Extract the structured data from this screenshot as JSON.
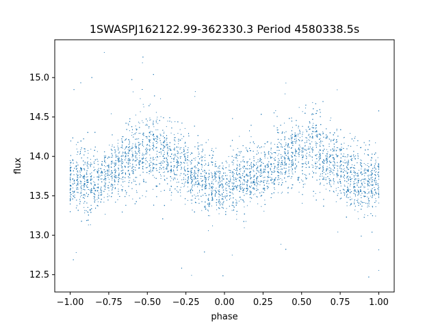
{
  "chart_data": {
    "type": "scatter",
    "title": "1SWASPJ162122.99-362330.3 Period 4580338.5s",
    "xlabel": "phase",
    "ylabel": "flux",
    "xlim": [
      -1.1,
      1.1
    ],
    "ylim": [
      12.28,
      15.48
    ],
    "grid": false,
    "legend": "none",
    "marker_color": "#1f77b4",
    "xticks": [
      -1.0,
      -0.75,
      -0.5,
      -0.25,
      0.0,
      0.25,
      0.5,
      0.75,
      1.0
    ],
    "xtick_labels": [
      "−1.00",
      "−0.75",
      "−0.50",
      "−0.25",
      "0.00",
      "0.25",
      "0.50",
      "0.75",
      "1.00"
    ],
    "yticks": [
      12.5,
      13.0,
      13.5,
      14.0,
      14.5,
      15.0
    ],
    "ytick_labels": [
      "12.5",
      "13.0",
      "13.5",
      "14.0",
      "14.5",
      "15.0"
    ],
    "series": [
      {
        "x": [
          -1.0,
          -0.95,
          -0.9,
          -0.85,
          -0.8,
          -0.75,
          -0.7,
          -0.65,
          -0.6,
          -0.55,
          -0.5,
          -0.45,
          -0.4,
          -0.35,
          -0.3,
          -0.25,
          -0.2,
          -0.15,
          -0.1,
          -0.05,
          0.0,
          0.05,
          0.1,
          0.15,
          0.2,
          0.25,
          0.3,
          0.35,
          0.4,
          0.45,
          0.5,
          0.55,
          0.6,
          0.65,
          0.7,
          0.75,
          0.8,
          0.85,
          0.9,
          0.95,
          1.0
        ],
        "y": [
          13.7,
          13.72,
          13.68,
          13.65,
          13.72,
          13.8,
          13.88,
          13.9,
          13.95,
          14.05,
          14.05,
          14.1,
          14.05,
          13.95,
          13.9,
          13.85,
          13.8,
          13.72,
          13.68,
          13.65,
          13.6,
          13.68,
          13.7,
          13.72,
          13.75,
          13.82,
          13.88,
          13.92,
          13.95,
          14.05,
          14.05,
          14.1,
          14.05,
          13.95,
          13.9,
          13.85,
          13.75,
          13.72,
          13.7,
          13.68,
          13.7
        ],
        "spread": [
          0.32,
          0.35,
          0.4,
          0.35,
          0.3,
          0.3,
          0.32,
          0.35,
          0.4,
          0.45,
          0.42,
          0.45,
          0.4,
          0.35,
          0.32,
          0.35,
          0.4,
          0.38,
          0.35,
          0.35,
          0.32,
          0.35,
          0.38,
          0.38,
          0.32,
          0.3,
          0.32,
          0.35,
          0.38,
          0.42,
          0.45,
          0.45,
          0.42,
          0.38,
          0.35,
          0.35,
          0.4,
          0.4,
          0.38,
          0.35,
          0.32
        ]
      }
    ]
  }
}
